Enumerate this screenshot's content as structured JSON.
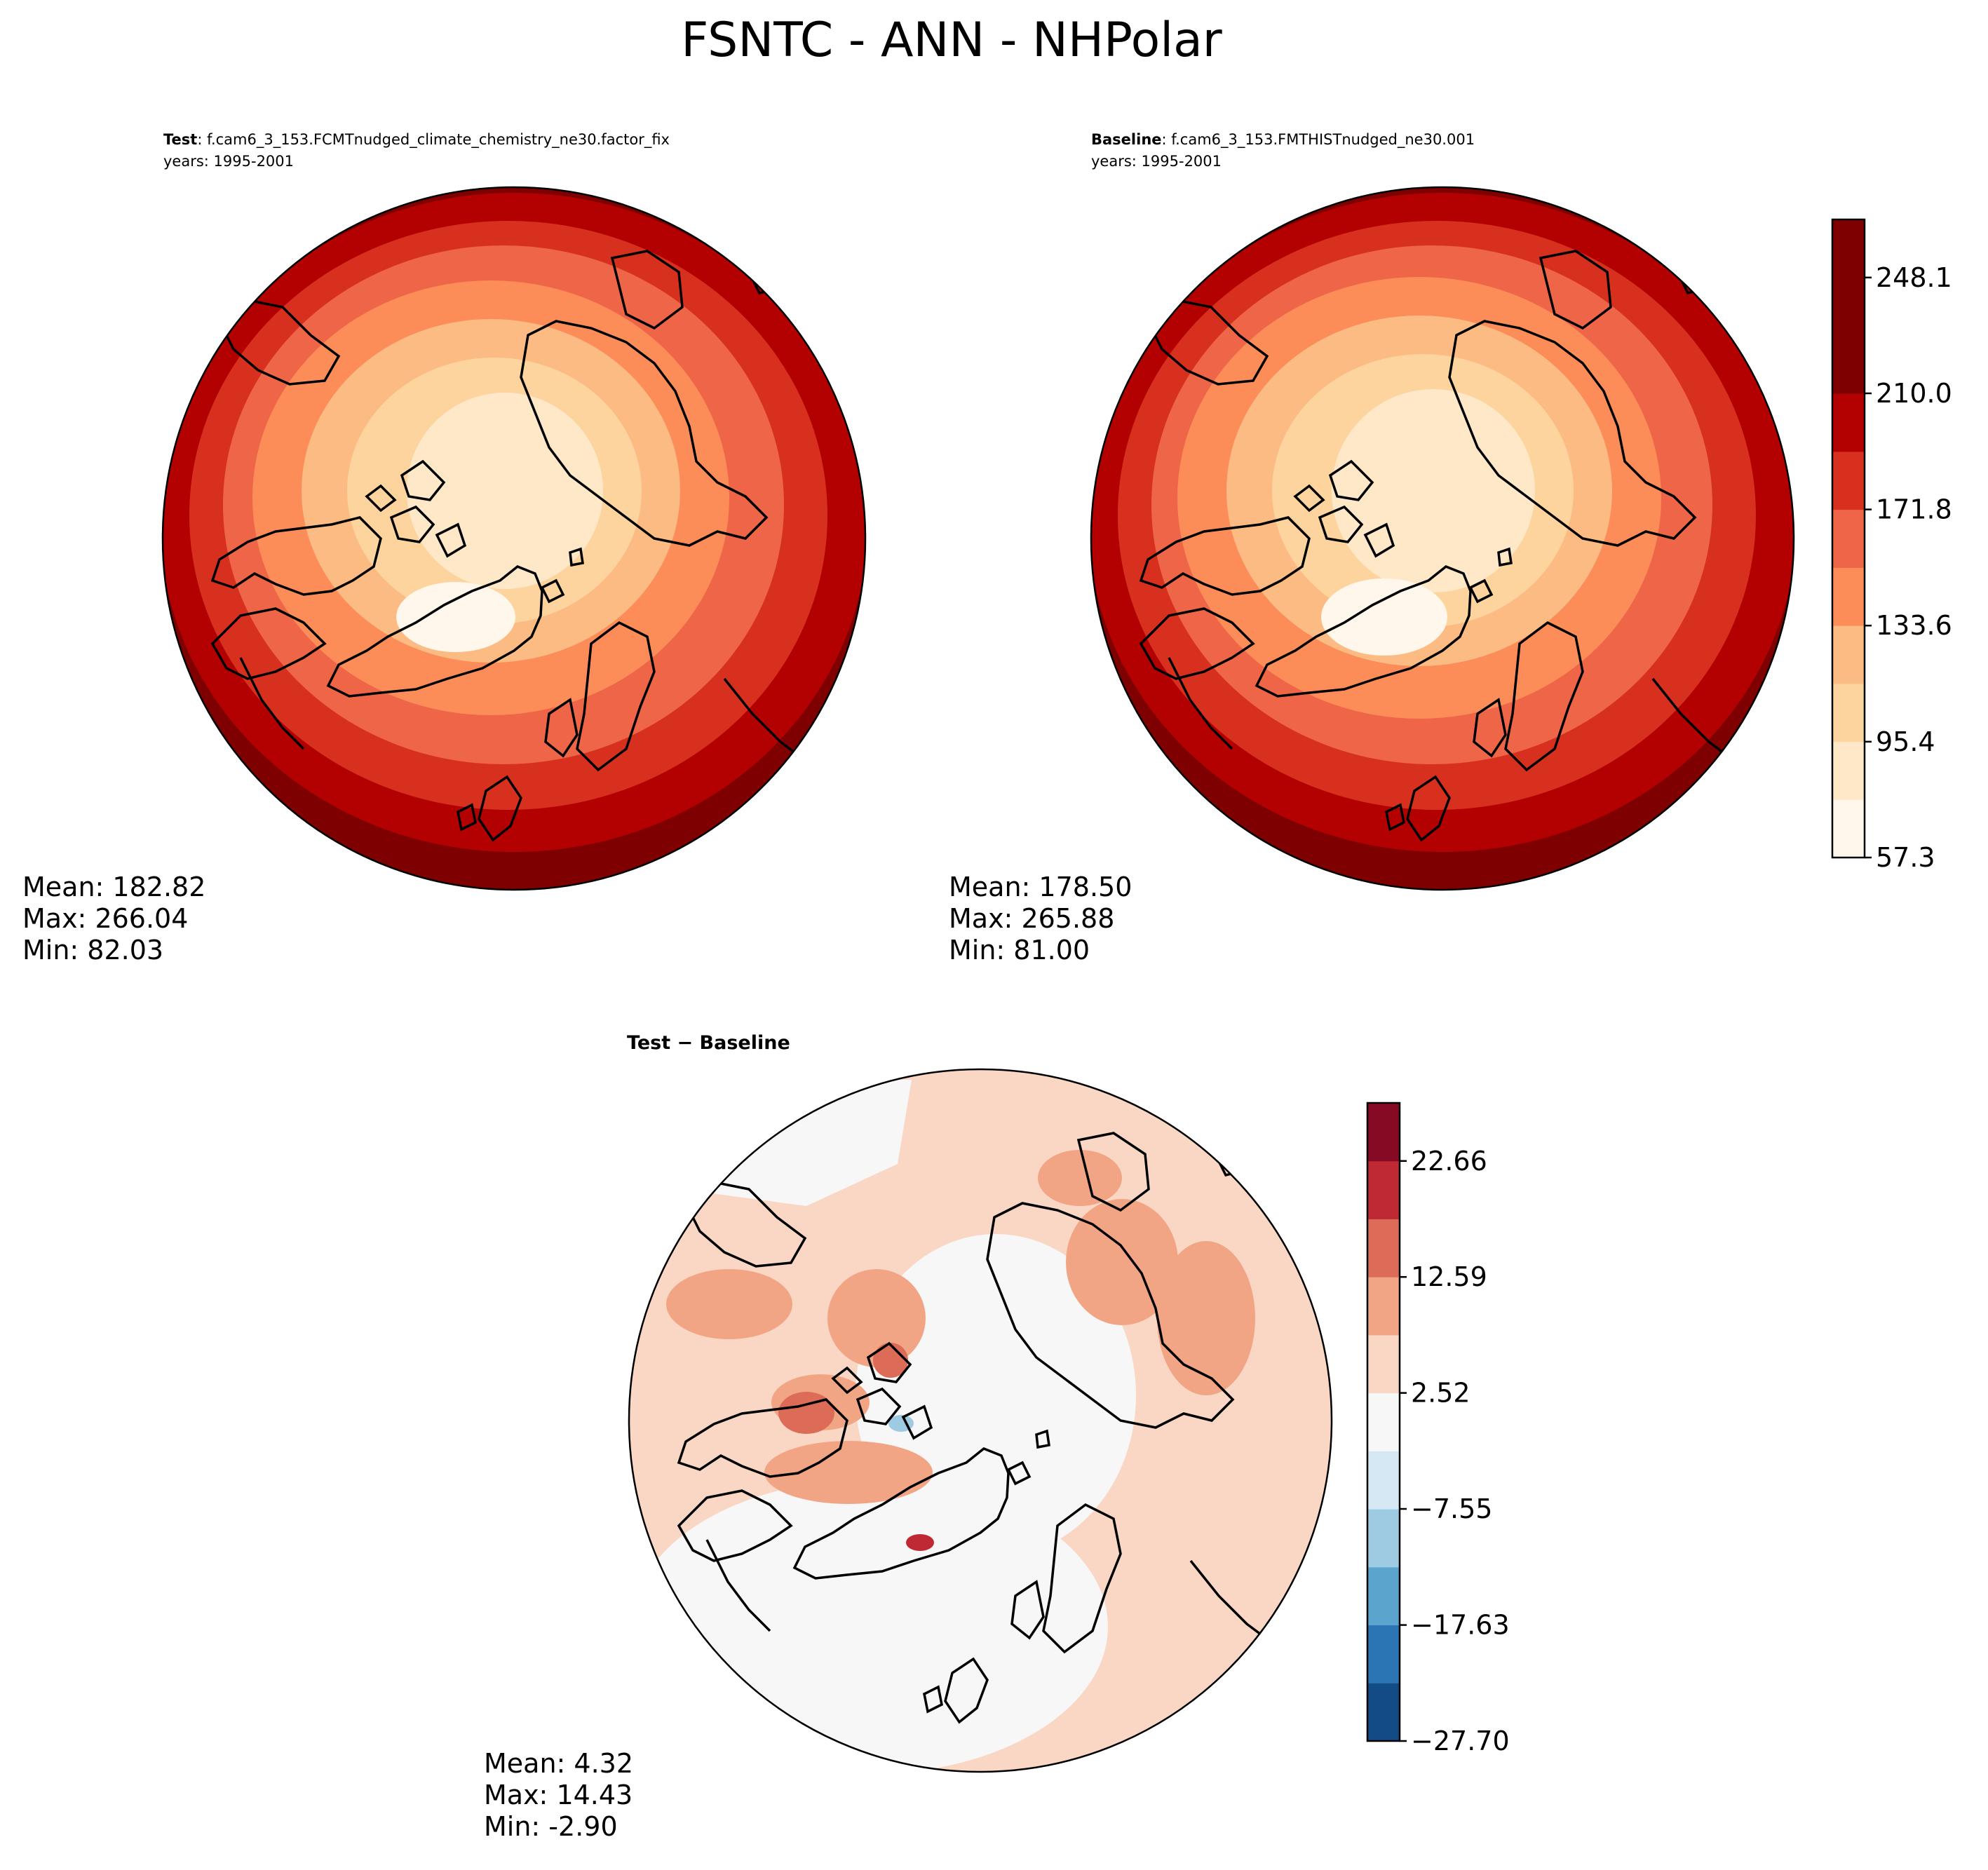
{
  "figure_title": "FSNTC - ANN - NHPolar",
  "colors": {
    "orrd": [
      "#fff7ec",
      "#fee8c8",
      "#fdd49e",
      "#fdbb84",
      "#fc8d59",
      "#ef6548",
      "#d7301f",
      "#b30000",
      "#7f0000"
    ],
    "rdbu": [
      "#134b87",
      "#2c75b4",
      "#5aa4cd",
      "#9ecbe2",
      "#d6e8f3",
      "#f7f7f7",
      "#fad7c4",
      "#f2a584",
      "#dc6c58",
      "#bf2934",
      "#870a24"
    ],
    "coast": "#000000"
  },
  "panels": {
    "test": {
      "label": "Test",
      "name": ": f.cam6_3_153.FCMTnudged_climate_chemistry_ne30.factor_fix",
      "years": "years: 1995-2001",
      "mean": "Mean: 182.82",
      "max": "Max: 266.04",
      "min": "Min: 82.03"
    },
    "baseline": {
      "label": "Baseline",
      "name": ": f.cam6_3_153.FMTHISTnudged_ne30.001",
      "years": "years: 1995-2001",
      "mean": "Mean: 178.50",
      "max": "Max: 265.88",
      "min": "Min: 81.00"
    },
    "diff": {
      "label": "Test − Baseline",
      "mean": "Mean:  4.32",
      "max": "Max: 14.43",
      "min": "Min: -2.90"
    }
  },
  "chart_data": [
    {
      "type": "heatmap",
      "projection": "north-polar-stereographic",
      "title": "Test : f.cam6_3_153.FCMTnudged_climate_chemistry_ne30.factor_fix",
      "stats": {
        "mean": 182.82,
        "max": 266.04,
        "min": 82.03
      },
      "colormap": "OrRd",
      "levels": [
        57.3,
        76.35,
        95.4,
        114.5,
        133.6,
        152.7,
        171.8,
        190.9,
        210.0,
        229.05,
        248.1,
        267.2
      ],
      "ring_levels_center_to_edge": [
        95.4,
        114.5,
        133.6,
        152.7,
        171.8,
        190.9,
        210.0,
        229.05,
        248.1
      ]
    },
    {
      "type": "heatmap",
      "projection": "north-polar-stereographic",
      "title": "Baseline : f.cam6_3_153.FMTHISTnudged_ne30.001",
      "stats": {
        "mean": 178.5,
        "max": 265.88,
        "min": 81.0
      },
      "colormap": "OrRd",
      "colorbar": {
        "tick_labels": [
          "57.3",
          "95.4",
          "133.6",
          "171.8",
          "210.0",
          "248.1"
        ],
        "tick_values": [
          57.3,
          95.4,
          133.6,
          171.8,
          210.0,
          248.1
        ],
        "range": [
          57.3,
          267.2
        ]
      }
    },
    {
      "type": "heatmap",
      "projection": "north-polar-stereographic",
      "title": "Test − Baseline",
      "stats": {
        "mean": 4.32,
        "max": 14.43,
        "min": -2.9
      },
      "colormap": "RdBu_r",
      "colorbar": {
        "tick_labels": [
          "−27.70",
          "−17.63",
          "−7.55",
          "2.52",
          "12.59",
          "22.66"
        ],
        "tick_values": [
          -27.7,
          -17.63,
          -7.55,
          2.52,
          12.59,
          22.66
        ],
        "range": [
          -27.7,
          27.7
        ]
      }
    }
  ]
}
